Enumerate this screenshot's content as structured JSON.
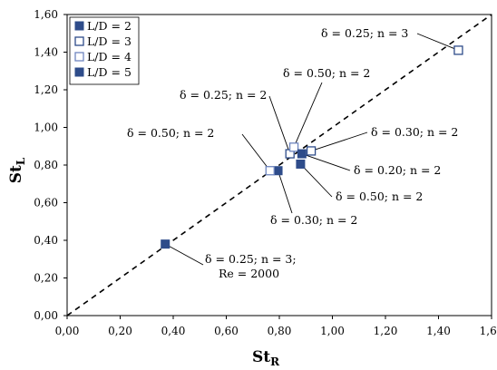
{
  "chart_data": {
    "type": "scatter",
    "xlabel": "St",
    "xlabel_sub": "R",
    "ylabel": "St",
    "ylabel_sub": "L",
    "xlim": [
      0,
      1.6
    ],
    "ylim": [
      0,
      1.6
    ],
    "x_ticks": [
      "0,00",
      "0,20",
      "0,40",
      "0,60",
      "0,80",
      "1,00",
      "1,20",
      "1,40",
      "1,60"
    ],
    "y_ticks": [
      "0,00",
      "0,20",
      "0,40",
      "0,60",
      "0,80",
      "1,00",
      "1,20",
      "1,40",
      "1,60"
    ],
    "grid": false,
    "reference_line": "y = x (dashed)",
    "legend_position": "top-left",
    "series": [
      {
        "name": "L/D = 2",
        "marker": "filled-square",
        "color": "#2e4c8a",
        "points": [
          {
            "x": 0.795,
            "y": 0.77
          },
          {
            "x": 0.88,
            "y": 0.805
          }
        ]
      },
      {
        "name": "L/D = 3",
        "marker": "open-square",
        "color": "#2e4c8a",
        "points": [
          {
            "x": 1.475,
            "y": 1.41
          },
          {
            "x": 0.84,
            "y": 0.86
          },
          {
            "x": 0.92,
            "y": 0.875
          }
        ]
      },
      {
        "name": "L/D = 4",
        "marker": "open-square",
        "color": "#6f86bf",
        "points": [
          {
            "x": 0.765,
            "y": 0.77
          },
          {
            "x": 0.855,
            "y": 0.895
          }
        ]
      },
      {
        "name": "L/D = 5",
        "marker": "filled-square",
        "color": "#2e4c8a",
        "points": [
          {
            "x": 0.37,
            "y": 0.38
          },
          {
            "x": 0.885,
            "y": 0.86
          }
        ]
      }
    ],
    "annotations": [
      {
        "lines": [
          "δ = 0.25; n = 3"
        ],
        "point": [
          1.475,
          1.41
        ]
      },
      {
        "lines": [
          "δ = 0.50; n = 2"
        ],
        "point": [
          0.855,
          0.895
        ]
      },
      {
        "lines": [
          "δ = 0.25; n = 2"
        ],
        "point": [
          0.84,
          0.86
        ]
      },
      {
        "lines": [
          "δ = 0.50; n = 2"
        ],
        "point": [
          0.765,
          0.77
        ]
      },
      {
        "lines": [
          "δ = 0.30; n = 2"
        ],
        "point": [
          0.92,
          0.875
        ]
      },
      {
        "lines": [
          "δ = 0.20; n = 2"
        ],
        "point": [
          0.885,
          0.86
        ]
      },
      {
        "lines": [
          "δ = 0.50; n = 2"
        ],
        "point": [
          0.88,
          0.805
        ]
      },
      {
        "lines": [
          "δ = 0.30; n = 2"
        ],
        "point": [
          0.795,
          0.77
        ]
      },
      {
        "lines": [
          "δ = 0.25; n = 3;",
          "Re = 2000"
        ],
        "point": [
          0.37,
          0.38
        ]
      }
    ]
  }
}
